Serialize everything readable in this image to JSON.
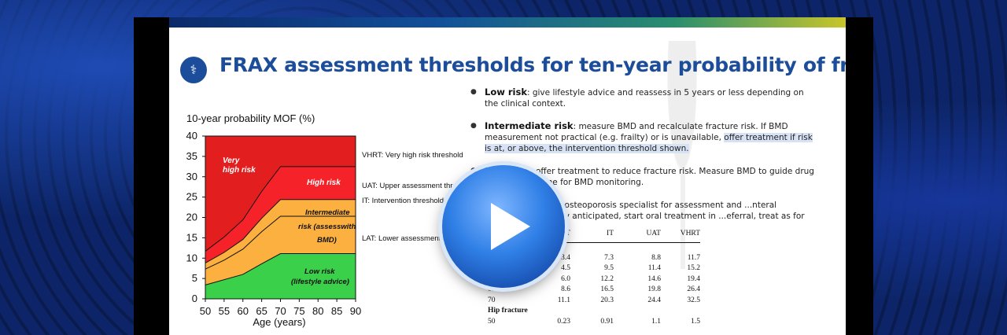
{
  "slide": {
    "title": "FRAX assessment thresholds for ten-year probability of fracture",
    "logo_icon": "bone-density-icon"
  },
  "chart_data": {
    "type": "area",
    "title": "",
    "ylabel": "10-year probability MOF (%)",
    "xlabel": "Age (years)",
    "x": [
      50,
      55,
      60,
      65,
      70,
      75,
      80,
      85,
      90
    ],
    "xlim": [
      50,
      90
    ],
    "ylim": [
      0,
      40
    ],
    "yticks": [
      0,
      5,
      10,
      15,
      20,
      25,
      30,
      35,
      40
    ],
    "xticks": [
      50,
      55,
      60,
      65,
      70,
      75,
      80,
      85,
      90
    ],
    "series": [
      {
        "name": "LAT: Lower assessment threshold",
        "points": [
          [
            50,
            3.4
          ],
          [
            60,
            6.0
          ],
          [
            65,
            8.6
          ],
          [
            70,
            11.1
          ],
          [
            90,
            11.1
          ]
        ]
      },
      {
        "name": "IT: Intervention threshold",
        "points": [
          [
            50,
            7.3
          ],
          [
            55,
            9.5
          ],
          [
            60,
            12.2
          ],
          [
            65,
            16.5
          ],
          [
            70,
            20.3
          ],
          [
            90,
            20.3
          ]
        ]
      },
      {
        "name": "UAT: Upper assessment threshold",
        "points": [
          [
            50,
            8.8
          ],
          [
            55,
            11.4
          ],
          [
            60,
            14.6
          ],
          [
            65,
            19.8
          ],
          [
            70,
            24.4
          ],
          [
            90,
            24.4
          ]
        ]
      },
      {
        "name": "VHRT: Very high risk threshold",
        "points": [
          [
            50,
            11.7
          ],
          [
            55,
            15.2
          ],
          [
            60,
            19.4
          ],
          [
            65,
            26.4
          ],
          [
            70,
            32.5
          ],
          [
            90,
            32.5
          ]
        ]
      }
    ],
    "zones": [
      {
        "label": "Very high risk",
        "color": "#e31e1e"
      },
      {
        "label": "High risk",
        "color": "#f5222a"
      },
      {
        "label": "Intermediate risk (assesswith BMD)",
        "color": "#fbb040"
      },
      {
        "label": "Low risk (lifestyle advice)",
        "color": "#3bd04a"
      }
    ]
  },
  "zone_labels": {
    "very_high": [
      "Very",
      "high risk"
    ],
    "high": "High risk",
    "intermediate": [
      "Intermediate",
      "risk (assesswith",
      "BMD)"
    ],
    "low": [
      "Low risk",
      "(lifestyle advice)"
    ]
  },
  "thresholds": {
    "vhrt": "VHRT: Very high risk threshold",
    "uat": "UAT: Upper assessment thres",
    "it": "IT: Intervention threshold",
    "lat": "LAT: Lower assessment thre"
  },
  "bullets": [
    {
      "head": "Low risk",
      "text": ": give lifestyle advice and reassess in 5 years or less depending on the clinical context."
    },
    {
      "head": "Intermediate risk",
      "text": ": measure BMD and recalculate fracture risk. If BMD measurement not practical (e.g. frailty) or is unavailable, ",
      "highlight": "offer treatment if risk is at, or above, the intervention threshold shown."
    },
    {
      "head": "High risk",
      "text": ": offer treatment to reduce fracture risk. Measure BMD to guide drug choice and ... line for BMD monitoring."
    },
    {
      "head": "",
      "text": "...nsider referral to osteoporosis specialist for assessment and ...nteral treatment. If a delay anticipated, start oral treatment in ...eferral, treat as for high risk."
    }
  ],
  "table": {
    "headers": [
      "",
      "LAT",
      "IT",
      "UAT",
      "VHRT"
    ],
    "section1": "...racture",
    "rows1": [
      [
        "",
        "3.4",
        "7.3",
        "8.8",
        "11.7"
      ],
      [
        "",
        "4.5",
        "9.5",
        "11.4",
        "15.2"
      ],
      [
        "60",
        "6.0",
        "12.2",
        "14.6",
        "19.4"
      ],
      [
        "65",
        "8.6",
        "16.5",
        "19.8",
        "26.4"
      ],
      [
        "70",
        "11.1",
        "20.3",
        "24.4",
        "32.5"
      ]
    ],
    "section2": "Hip fracture",
    "rows2": [
      [
        "50",
        "0.23",
        "0.91",
        "1.1",
        "1.5"
      ]
    ]
  },
  "player": {
    "play_icon": "play-icon"
  }
}
